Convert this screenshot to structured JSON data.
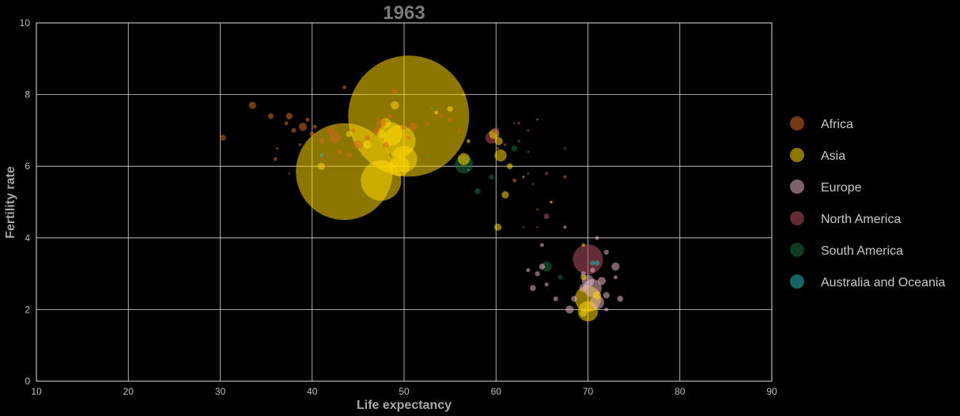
{
  "chart_data": {
    "type": "scatter",
    "title": "1963",
    "xlabel": "Life expectancy",
    "ylabel": "Fertility rate",
    "xlim": [
      10,
      90
    ],
    "ylim": [
      0,
      10
    ],
    "xticks": [
      "10",
      "20",
      "30",
      "40",
      "50",
      "60",
      "70",
      "80",
      "90"
    ],
    "yticks": [
      "0",
      "2",
      "4",
      "6",
      "8",
      "10"
    ],
    "grid": true,
    "legend_position": "right",
    "series": [
      {
        "name": "Africa",
        "color": "#d2691e",
        "points": [
          [
            30.3,
            6.8,
            1.5
          ],
          [
            33.5,
            7.7,
            1.8
          ],
          [
            35.5,
            7.4,
            1.4
          ],
          [
            36.2,
            6.5,
            0.6
          ],
          [
            36.0,
            6.2,
            0.9
          ],
          [
            37.2,
            7.2,
            1.0
          ],
          [
            37.5,
            7.4,
            1.6
          ],
          [
            37.5,
            5.8,
            0.4
          ],
          [
            38.0,
            7.0,
            1.2
          ],
          [
            38.7,
            6.6,
            0.7
          ],
          [
            39.0,
            7.1,
            2.0
          ],
          [
            39.5,
            7.3,
            1.0
          ],
          [
            40.0,
            6.9,
            1.3
          ],
          [
            40.3,
            7.1,
            1.0
          ],
          [
            41.0,
            6.7,
            1.5
          ],
          [
            42.0,
            7.0,
            1.8
          ],
          [
            43.0,
            6.4,
            1.2
          ],
          [
            43.5,
            8.2,
            1.0
          ],
          [
            44.0,
            6.3,
            1.4
          ],
          [
            44.5,
            7.0,
            1.0
          ],
          [
            45.0,
            6.6,
            2.2
          ],
          [
            46.0,
            6.8,
            1.3
          ],
          [
            47.0,
            7.0,
            1.8
          ],
          [
            48.0,
            6.6,
            1.5
          ],
          [
            48.5,
            7.4,
            1.2
          ],
          [
            49.0,
            8.1,
            1.5
          ],
          [
            50.0,
            7.1,
            1.4
          ],
          [
            50.5,
            6.8,
            1.0
          ],
          [
            51.0,
            7.1,
            2.0
          ],
          [
            52.5,
            7.2,
            0.8
          ],
          [
            54.0,
            7.4,
            1.0
          ],
          [
            55.0,
            7.3,
            1.1
          ],
          [
            56.0,
            7.0,
            0.7
          ],
          [
            39.5,
            6.5,
            0.6
          ],
          [
            41.5,
            6.0,
            0.6
          ],
          [
            43.5,
            5.5,
            0.5
          ],
          [
            42.5,
            6.8,
            2.8
          ],
          [
            47.5,
            7.2,
            2.4
          ],
          [
            62.0,
            5.6,
            1.0
          ],
          [
            63.5,
            5.8,
            0.5
          ],
          [
            64.5,
            4.8,
            0.5
          ],
          [
            65.5,
            5.8,
            0.7
          ],
          [
            67.5,
            5.7,
            0.8
          ],
          [
            66.0,
            5.0,
            0.7
          ],
          [
            60.2,
            6.5,
            0.7
          ],
          [
            63.0,
            4.3,
            0.3
          ],
          [
            64.5,
            4.3,
            0.3
          ]
        ]
      },
      {
        "name": "Asia",
        "color": "#ffd700",
        "points": [
          [
            50.5,
            7.4,
            30.0
          ],
          [
            43.5,
            5.85,
            24.0
          ],
          [
            47.5,
            5.6,
            10.0
          ],
          [
            48.5,
            6.9,
            6.0
          ],
          [
            49.5,
            6.7,
            8.0
          ],
          [
            50.0,
            6.2,
            6.5
          ],
          [
            49.5,
            6.0,
            5.0
          ],
          [
            48.0,
            7.2,
            2.5
          ],
          [
            49.0,
            7.7,
            2.0
          ],
          [
            47.5,
            6.9,
            2.2
          ],
          [
            44.0,
            6.9,
            1.5
          ],
          [
            46.0,
            6.6,
            2.0
          ],
          [
            41.0,
            6.0,
            1.8
          ],
          [
            59.8,
            6.9,
            2.5
          ],
          [
            60.3,
            6.7,
            2.0
          ],
          [
            60.5,
            6.3,
            3.0
          ],
          [
            56.5,
            6.2,
            3.0
          ],
          [
            61.0,
            5.2,
            1.8
          ],
          [
            60.2,
            4.3,
            1.8
          ],
          [
            61.5,
            6.0,
            1.5
          ],
          [
            57.0,
            6.7,
            1.0
          ],
          [
            53.5,
            7.5,
            1.0
          ],
          [
            55.0,
            7.6,
            1.4
          ],
          [
            56.5,
            8.0,
            0.6
          ],
          [
            66.0,
            5.0,
            0.6
          ],
          [
            70.0,
            1.95,
            5.0
          ],
          [
            70.0,
            2.3,
            6.5
          ],
          [
            69.5,
            1.9,
            1.8
          ],
          [
            71.0,
            2.4,
            2.0
          ],
          [
            69.5,
            2.9,
            1.4
          ],
          [
            69.5,
            3.8,
            0.9
          ],
          [
            63.0,
            5.7,
            0.6
          ],
          [
            64.5,
            7.3,
            0.4
          ]
        ]
      },
      {
        "name": "Europe",
        "color": "#e6b3c2",
        "points": [
          [
            69.5,
            2.6,
            2.0
          ],
          [
            70.0,
            2.8,
            3.0
          ],
          [
            70.5,
            2.6,
            4.5
          ],
          [
            71.0,
            2.2,
            3.5
          ],
          [
            71.5,
            2.8,
            2.0
          ],
          [
            72.0,
            2.4,
            1.6
          ],
          [
            73.0,
            3.2,
            2.0
          ],
          [
            73.5,
            2.3,
            1.5
          ],
          [
            68.0,
            2.0,
            2.0
          ],
          [
            68.5,
            2.3,
            1.5
          ],
          [
            66.5,
            2.3,
            1.2
          ],
          [
            65.5,
            2.7,
            1.0
          ],
          [
            65.0,
            3.2,
            1.5
          ],
          [
            64.5,
            3.0,
            1.2
          ],
          [
            64.0,
            2.6,
            1.5
          ],
          [
            65.0,
            3.8,
            1.0
          ],
          [
            71.0,
            4.0,
            1.0
          ],
          [
            72.0,
            3.6,
            1.2
          ],
          [
            73.0,
            2.9,
            1.0
          ],
          [
            69.5,
            3.0,
            1.2
          ],
          [
            63.5,
            3.1,
            1.0
          ],
          [
            70.5,
            3.1,
            1.2
          ],
          [
            67.5,
            4.3,
            0.8
          ],
          [
            72.0,
            2.0,
            1.0
          ]
        ]
      },
      {
        "name": "North America",
        "color": "#b0505e",
        "points": [
          [
            70.0,
            3.4,
            7.5
          ],
          [
            59.5,
            6.8,
            3.0
          ],
          [
            65.5,
            4.6,
            1.4
          ],
          [
            60.0,
            7.0,
            1.5
          ],
          [
            62.5,
            7.2,
            0.7
          ],
          [
            63.5,
            7.0,
            0.6
          ],
          [
            61.0,
            6.6,
            0.7
          ],
          [
            64.0,
            5.5,
            0.6
          ]
        ]
      },
      {
        "name": "South America",
        "color": "#1a6b3c",
        "points": [
          [
            56.5,
            6.05,
            4.5
          ],
          [
            58.0,
            5.3,
            1.5
          ],
          [
            59.5,
            5.7,
            1.2
          ],
          [
            62.0,
            6.5,
            1.5
          ],
          [
            65.5,
            3.2,
            2.5
          ],
          [
            67.0,
            2.9,
            1.2
          ],
          [
            62.5,
            6.7,
            0.8
          ],
          [
            67.5,
            6.5,
            0.8
          ]
        ]
      },
      {
        "name": "Australia and Oceania",
        "color": "#2ab7b7",
        "points": [
          [
            71.0,
            3.3,
            1.3
          ],
          [
            70.5,
            3.3,
            1.2
          ],
          [
            41.0,
            6.3,
            1.0
          ],
          [
            57.0,
            5.9,
            0.5
          ],
          [
            52.5,
            6.3,
            0.3
          ],
          [
            53.0,
            7.6,
            0.3
          ],
          [
            62.0,
            7.2,
            0.3
          ],
          [
            63.5,
            6.4,
            0.3
          ]
        ]
      }
    ]
  }
}
